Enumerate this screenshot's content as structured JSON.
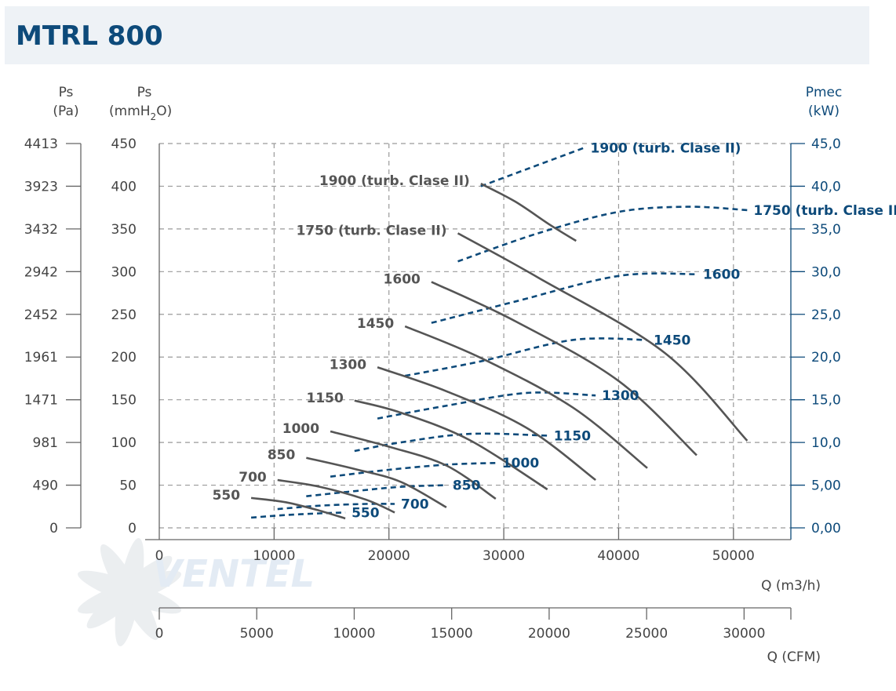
{
  "title": "MTRL 800",
  "brand": "VENTEL",
  "colors": {
    "pressure": "#555555",
    "power": "#0d4a7a",
    "grid": "#9a9a9a",
    "title": "#0d4a7a"
  },
  "chart_data": {
    "type": "line",
    "title": "MTRL 800",
    "xlabel": "Q (m3/h)",
    "x_ticks": [
      "0",
      "10000",
      "20000",
      "30000",
      "40000",
      "50000"
    ],
    "xlim": [
      0,
      55000
    ],
    "x2label": "Q (CFM)",
    "x2_ticks": [
      "0",
      "5000",
      "10000",
      "15000",
      "20000",
      "25000",
      "30000"
    ],
    "x2lim": [
      0,
      32400
    ],
    "y_pa_label": [
      "Ps",
      "(Pa)"
    ],
    "y_pa_ticks": [
      "4413",
      "3923",
      "3432",
      "2942",
      "2452",
      "1961",
      "1471",
      "981",
      "490",
      "0"
    ],
    "y_mm_label": [
      "Ps",
      "(mmH",
      "2",
      "O)"
    ],
    "y_mm_ticks": [
      "450",
      "400",
      "350",
      "300",
      "250",
      "200",
      "150",
      "100",
      "50",
      "0"
    ],
    "ylim": [
      0,
      450
    ],
    "y_right_label": [
      "Pmec",
      "(kW)"
    ],
    "y_right_ticks": [
      "45,0",
      "40,0",
      "35,0",
      "30,0",
      "25,0",
      "20,0",
      "15,0",
      "10,0",
      "5,00",
      "0,00"
    ],
    "y_right_lim": [
      0,
      45
    ],
    "grid": true,
    "pressure_curves": [
      {
        "name": "550",
        "points": [
          [
            8000,
            35
          ],
          [
            11000,
            30
          ],
          [
            14000,
            20
          ],
          [
            16200,
            11
          ]
        ]
      },
      {
        "name": "700",
        "points": [
          [
            10300,
            56
          ],
          [
            14000,
            48
          ],
          [
            18000,
            33
          ],
          [
            20500,
            18
          ]
        ]
      },
      {
        "name": "850",
        "points": [
          [
            12800,
            82
          ],
          [
            17000,
            69
          ],
          [
            21000,
            54
          ],
          [
            25000,
            24
          ]
        ]
      },
      {
        "name": "1000",
        "points": [
          [
            14900,
            113
          ],
          [
            20000,
            95
          ],
          [
            25000,
            73
          ],
          [
            29300,
            34
          ]
        ]
      },
      {
        "name": "1150",
        "points": [
          [
            17000,
            149
          ],
          [
            21000,
            135
          ],
          [
            27000,
            103
          ],
          [
            33800,
            45
          ]
        ]
      },
      {
        "name": "1300",
        "points": [
          [
            19000,
            188
          ],
          [
            25000,
            160
          ],
          [
            32000,
            117
          ],
          [
            38000,
            56
          ]
        ]
      },
      {
        "name": "1450",
        "points": [
          [
            21400,
            236
          ],
          [
            28000,
            199
          ],
          [
            36000,
            141
          ],
          [
            42500,
            70
          ]
        ]
      },
      {
        "name": "1600",
        "points": [
          [
            23700,
            288
          ],
          [
            31000,
            242
          ],
          [
            40000,
            172
          ],
          [
            46800,
            85
          ]
        ]
      },
      {
        "name": "1750 (turb. Clase II)",
        "points": [
          [
            26000,
            345
          ],
          [
            33000,
            293
          ],
          [
            44000,
            205
          ],
          [
            51200,
            102
          ]
        ]
      },
      {
        "name": "1900 (turb. Clase II)",
        "points": [
          [
            28000,
            403
          ],
          [
            31000,
            382
          ],
          [
            34000,
            355
          ],
          [
            36300,
            336
          ]
        ]
      }
    ],
    "power_curves": [
      {
        "name": "550",
        "points": [
          [
            8000,
            1.2
          ],
          [
            11000,
            1.5
          ],
          [
            14000,
            1.7
          ],
          [
            16200,
            1.8
          ]
        ]
      },
      {
        "name": "700",
        "points": [
          [
            10300,
            2.2
          ],
          [
            14000,
            2.6
          ],
          [
            18000,
            2.8
          ],
          [
            20500,
            2.8
          ]
        ]
      },
      {
        "name": "850",
        "points": [
          [
            12800,
            3.7
          ],
          [
            17000,
            4.3
          ],
          [
            21000,
            4.8
          ],
          [
            25000,
            5.0
          ]
        ]
      },
      {
        "name": "1000",
        "points": [
          [
            14900,
            6.0
          ],
          [
            20000,
            6.8
          ],
          [
            25000,
            7.4
          ],
          [
            29300,
            7.6
          ]
        ]
      },
      {
        "name": "1150",
        "points": [
          [
            17000,
            9.0
          ],
          [
            21000,
            10.0
          ],
          [
            27000,
            11.0
          ],
          [
            33800,
            10.8
          ]
        ]
      },
      {
        "name": "1300",
        "points": [
          [
            19000,
            12.8
          ],
          [
            25000,
            14.3
          ],
          [
            32000,
            15.8
          ],
          [
            38000,
            15.5
          ]
        ]
      },
      {
        "name": "1450",
        "points": [
          [
            21400,
            17.8
          ],
          [
            28000,
            19.5
          ],
          [
            36000,
            22.0
          ],
          [
            42500,
            22.0
          ]
        ]
      },
      {
        "name": "1600",
        "points": [
          [
            23700,
            24.0
          ],
          [
            31000,
            26.5
          ],
          [
            40000,
            29.5
          ],
          [
            46800,
            29.7
          ]
        ]
      },
      {
        "name": "1750 (turb. Clase II)",
        "points": [
          [
            26000,
            31.2
          ],
          [
            33000,
            34.5
          ],
          [
            40000,
            37.0
          ],
          [
            46000,
            37.6
          ],
          [
            51200,
            37.2
          ]
        ]
      },
      {
        "name": "1900 (turb. Clase II)",
        "points": [
          [
            28000,
            40.0
          ],
          [
            31000,
            41.5
          ],
          [
            35000,
            43.5
          ],
          [
            37000,
            44.5
          ]
        ]
      }
    ]
  }
}
